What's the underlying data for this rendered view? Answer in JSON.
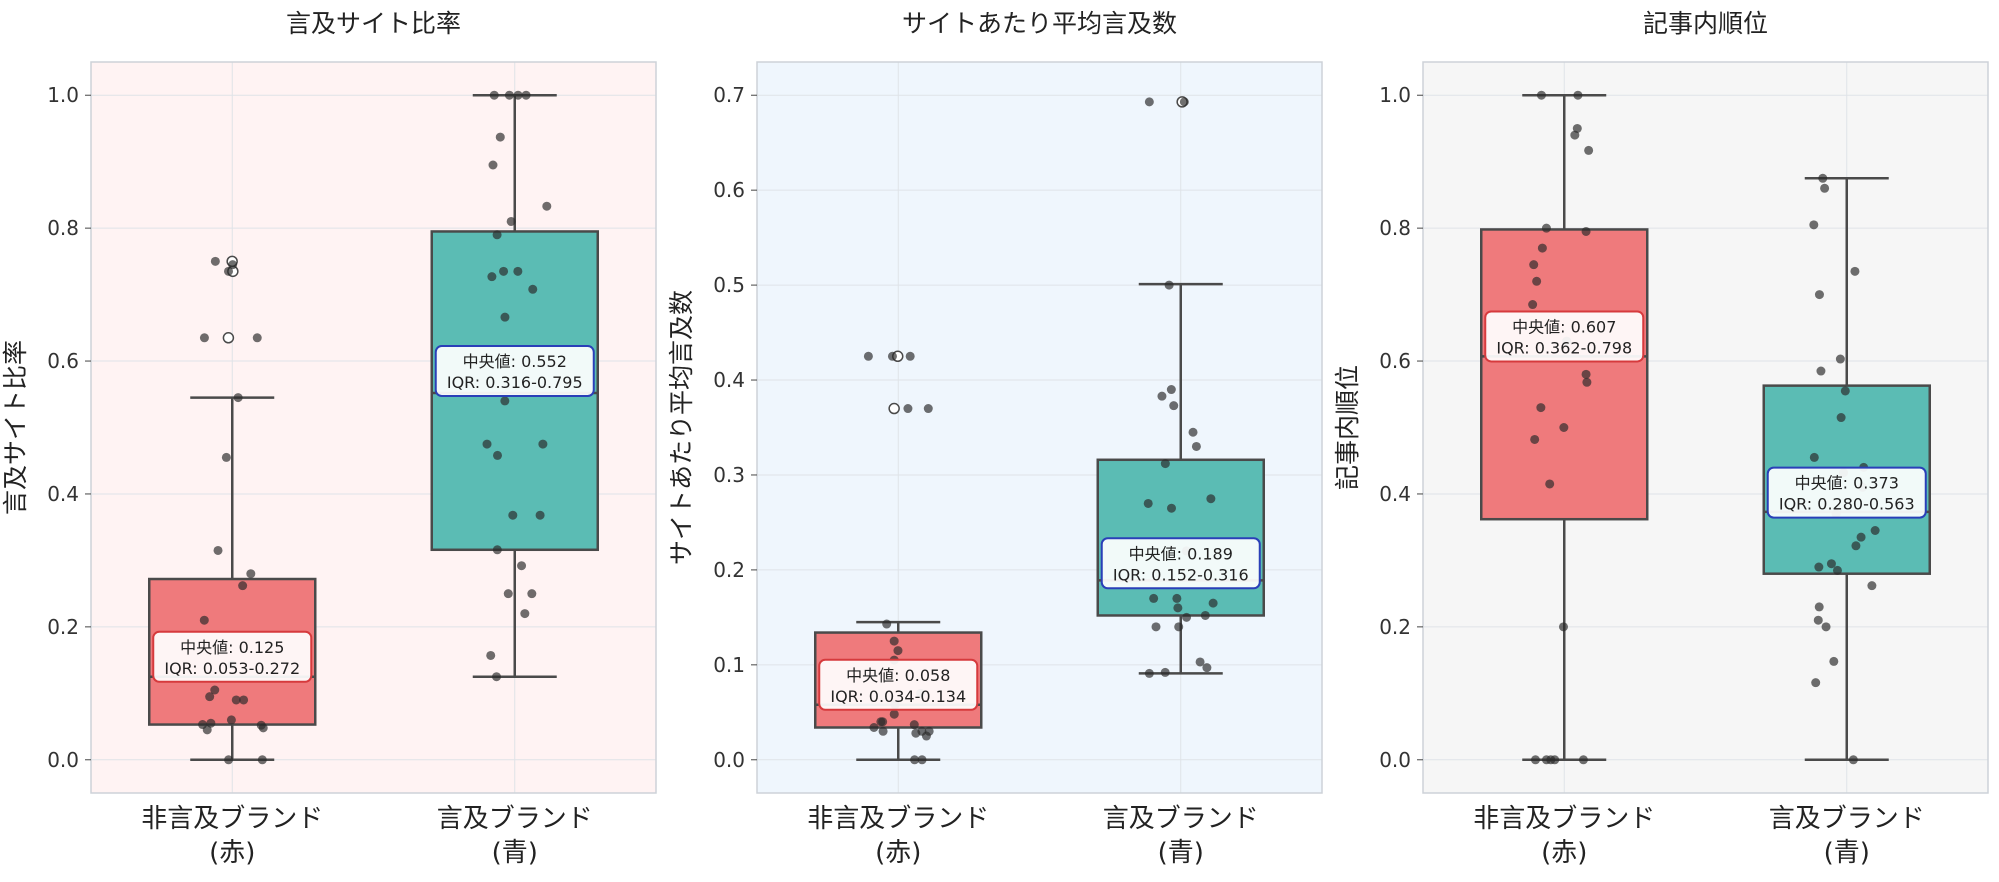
{
  "chart_data": [
    {
      "type": "box",
      "title": "言及サイト比率",
      "ylabel": "言及サイト比率",
      "ylim": [
        -0.05,
        1.05
      ],
      "yticks": [
        "0.0",
        "0.2",
        "0.4",
        "0.6",
        "0.8",
        "1.0"
      ],
      "background": "#fff3f3",
      "grid": true,
      "categories": [
        {
          "line1": "非言及ブランド",
          "line2": "(赤)"
        },
        {
          "line1": "言及ブランド",
          "line2": "(青)"
        }
      ],
      "boxes": [
        {
          "color": "#ef7a7c",
          "annotation_color": "#d63a3d",
          "whisker_low": 0.0,
          "q1": 0.053,
          "median": 0.125,
          "q3": 0.272,
          "whisker_high": 0.545,
          "median_label": "中央値: 0.125",
          "iqr_label": "IQR: 0.053-0.272",
          "label_y": 0.155,
          "outliers": [
            0.75,
            0.735,
            0.635
          ],
          "points": [
            0.75,
            0.735,
            0.745,
            0.635,
            0.635,
            0.545,
            0.455,
            0.315,
            0.28,
            0.262,
            0.21,
            0.143,
            0.105,
            0.09,
            0.095,
            0.09,
            0.06,
            0.055,
            0.053,
            0.052,
            0.048,
            0.045,
            0.0,
            0.0
          ]
        },
        {
          "color": "#5bbcb4",
          "annotation_color": "#2a3fb8",
          "whisker_low": 0.125,
          "q1": 0.316,
          "median": 0.552,
          "q3": 0.795,
          "whisker_high": 1.0,
          "median_label": "中央値: 0.552",
          "iqr_label": "IQR: 0.316-0.795",
          "label_y": 0.585,
          "outliers": [],
          "points": [
            1.0,
            1.0,
            1.0,
            1.0,
            0.937,
            0.895,
            0.833,
            0.81,
            0.79,
            0.735,
            0.735,
            0.727,
            0.708,
            0.666,
            0.54,
            0.475,
            0.475,
            0.458,
            0.368,
            0.368,
            0.316,
            0.292,
            0.25,
            0.25,
            0.22,
            0.157,
            0.125
          ]
        }
      ]
    },
    {
      "type": "box",
      "title": "サイトあたり平均言及数",
      "ylabel": "サイトあたり平均言及数",
      "ylim": [
        -0.035,
        0.735
      ],
      "yticks": [
        "0.0",
        "0.1",
        "0.2",
        "0.3",
        "0.4",
        "0.5",
        "0.6",
        "0.7"
      ],
      "background": "#eff6fd",
      "grid": true,
      "categories": [
        {
          "line1": "非言及ブランド",
          "line2": "(赤)"
        },
        {
          "line1": "言及ブランド",
          "line2": "(青)"
        }
      ],
      "boxes": [
        {
          "color": "#ef7a7c",
          "annotation_color": "#d63a3d",
          "whisker_low": 0.0,
          "q1": 0.034,
          "median": 0.058,
          "q3": 0.134,
          "whisker_high": 0.145,
          "median_label": "中央値: 0.058",
          "iqr_label": "IQR: 0.034-0.134",
          "label_y": 0.079,
          "outliers": [
            0.425,
            0.37
          ],
          "points": [
            0.425,
            0.425,
            0.425,
            0.37,
            0.37,
            0.143,
            0.125,
            0.115,
            0.105,
            0.07,
            0.058,
            0.048,
            0.04,
            0.04,
            0.037,
            0.034,
            0.03,
            0.028,
            0.03,
            0.03,
            0.025,
            0.0,
            0.0
          ]
        },
        {
          "color": "#5bbcb4",
          "annotation_color": "#2a3fb8",
          "whisker_low": 0.091,
          "q1": 0.152,
          "median": 0.189,
          "q3": 0.316,
          "whisker_high": 0.501,
          "median_label": "中央値: 0.189",
          "iqr_label": "IQR: 0.152-0.316",
          "label_y": 0.207,
          "outliers": [
            0.693
          ],
          "points": [
            0.693,
            0.693,
            0.5,
            0.39,
            0.383,
            0.373,
            0.345,
            0.33,
            0.312,
            0.275,
            0.27,
            0.265,
            0.22,
            0.17,
            0.17,
            0.165,
            0.16,
            0.152,
            0.15,
            0.14,
            0.14,
            0.103,
            0.097,
            0.092,
            0.091
          ]
        }
      ]
    },
    {
      "type": "box",
      "title": "記事内順位",
      "ylabel": "記事内順位",
      "ylim": [
        -0.05,
        1.05
      ],
      "yticks": [
        "0.0",
        "0.2",
        "0.4",
        "0.6",
        "0.8",
        "1.0"
      ],
      "background": "#f6f6f6",
      "grid": true,
      "categories": [
        {
          "line1": "非言及ブランド",
          "line2": "(赤)"
        },
        {
          "line1": "言及ブランド",
          "line2": "(青)"
        }
      ],
      "boxes": [
        {
          "color": "#ef7a7c",
          "annotation_color": "#d63a3d",
          "whisker_low": 0.0,
          "q1": 0.362,
          "median": 0.607,
          "q3": 0.798,
          "whisker_high": 1.0,
          "median_label": "中央値: 0.607",
          "iqr_label": "IQR: 0.362-0.798",
          "label_y": 0.637,
          "outliers": [],
          "points": [
            1.0,
            1.0,
            0.95,
            0.94,
            0.917,
            0.8,
            0.795,
            0.77,
            0.745,
            0.72,
            0.685,
            0.63,
            0.58,
            0.568,
            0.53,
            0.5,
            0.482,
            0.415,
            0.2,
            0.0,
            0.0,
            0.0,
            0.0,
            0.0
          ]
        },
        {
          "color": "#5bbcb4",
          "annotation_color": "#2a3fb8",
          "whisker_low": 0.0,
          "q1": 0.28,
          "median": 0.373,
          "q3": 0.563,
          "whisker_high": 0.875,
          "median_label": "中央値: 0.373",
          "iqr_label": "IQR: 0.280-0.563",
          "label_y": 0.402,
          "outliers": [],
          "points": [
            0.875,
            0.86,
            0.805,
            0.735,
            0.7,
            0.603,
            0.585,
            0.555,
            0.515,
            0.455,
            0.44,
            0.432,
            0.41,
            0.37,
            0.345,
            0.335,
            0.322,
            0.295,
            0.285,
            0.29,
            0.262,
            0.23,
            0.21,
            0.2,
            0.148,
            0.116,
            0.0
          ]
        }
      ]
    }
  ]
}
